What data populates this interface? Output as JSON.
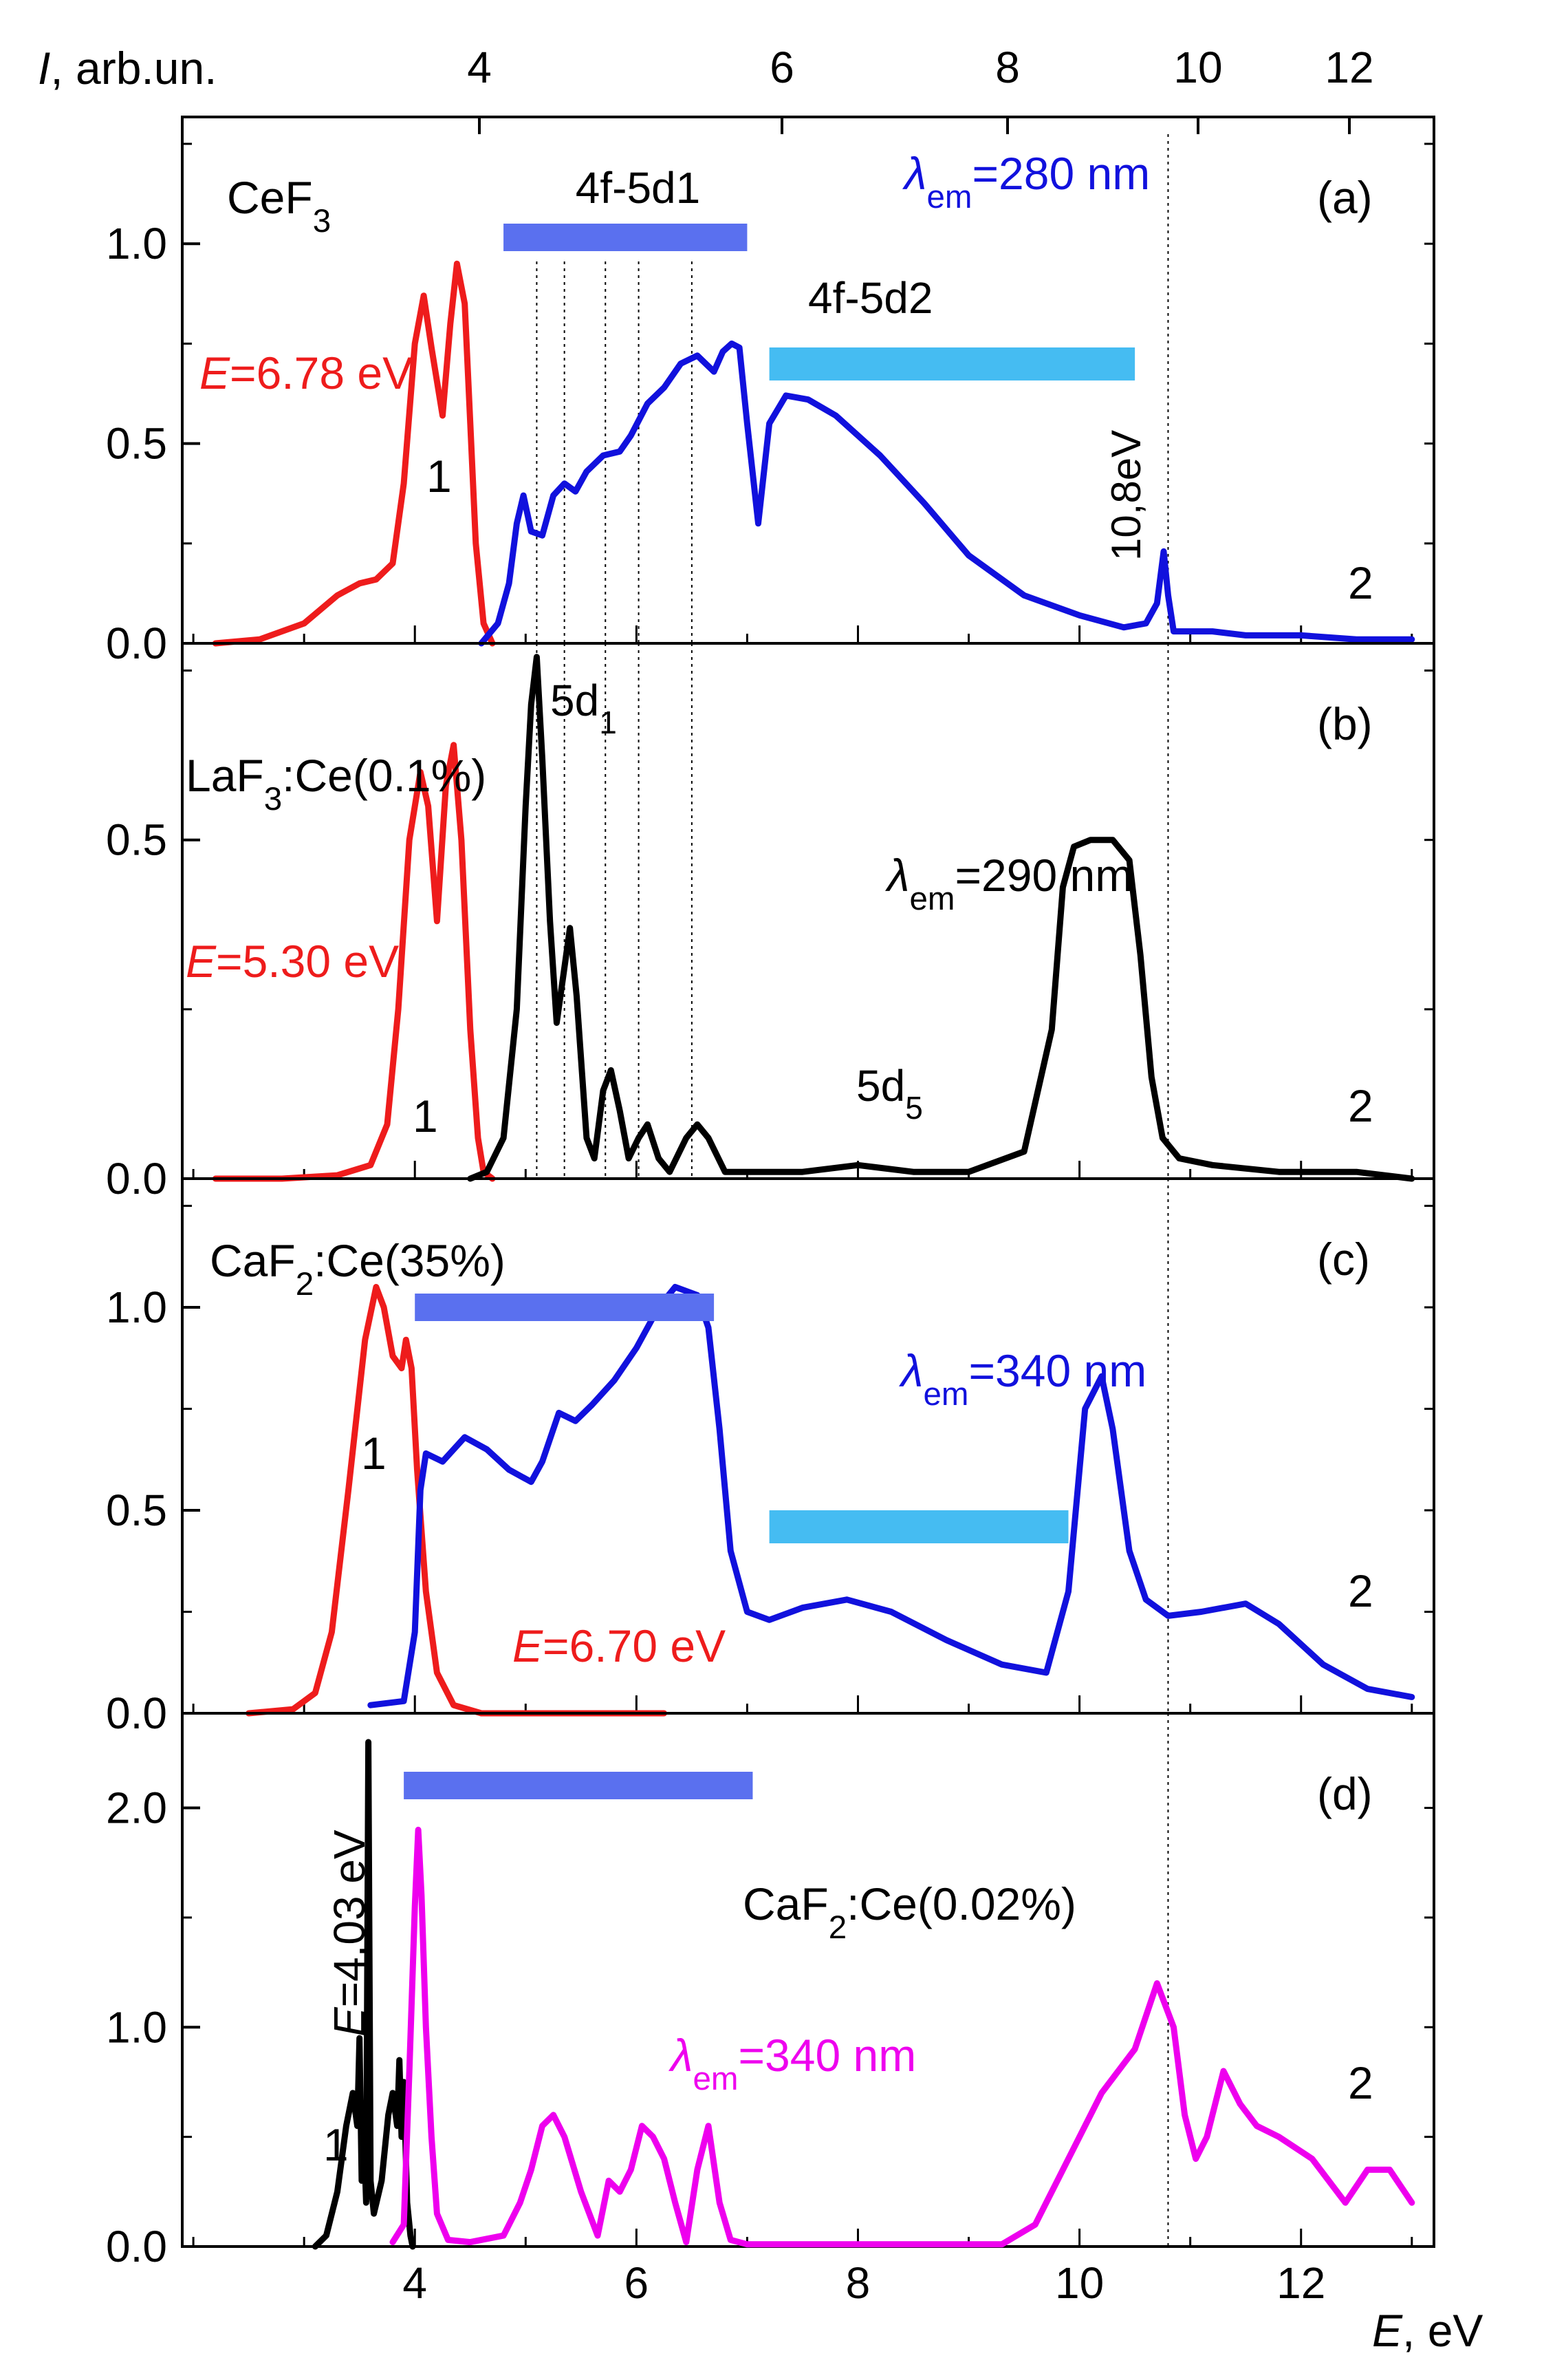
{
  "top_axis": {
    "ticks": [
      {
        "value": 4,
        "label": "4"
      },
      {
        "value": 6,
        "label": "6"
      },
      {
        "value": 8,
        "label": "8"
      },
      {
        "value": 10,
        "label": "10"
      },
      {
        "value": 12,
        "label": "12"
      }
    ]
  },
  "colors": {
    "red": "#ee1c1c",
    "blue": "#1111dd",
    "black": "#000000",
    "magenta": "#ee00ee",
    "band_dark": "#5a70ef",
    "band_light": "#45bcf2"
  },
  "ylabel_prefix": "I",
  "ylabel_suffix": ", arb.un.",
  "xlabel_prefix": "E",
  "xlabel_suffix": ", eV",
  "chart_data": [
    {
      "type": "line",
      "panel_label": "(a)",
      "sample_label": {
        "main": "CeF",
        "sub": "3",
        "tail": ""
      },
      "ylim": [
        0,
        1.3
      ],
      "yticks": [
        {
          "value": 0,
          "label": "0.0"
        },
        {
          "value": 0.5,
          "label": "0.5"
        },
        {
          "value": 1.0,
          "label": "1.0"
        }
      ],
      "excitation_label": {
        "prefix": "E",
        "text": "=6.78 eV"
      },
      "emission_label": {
        "lambda": "λ",
        "sub": "em",
        "text": "=280 nm"
      },
      "band_labels": [
        "4f-5d1",
        "4f-5d2"
      ],
      "annotation_vertical": "10,8eV",
      "curve_labels": [
        "1",
        "2"
      ],
      "series": [
        {
          "name": "1",
          "axis": "top_wavelength",
          "color": "red",
          "x": [
            2.2,
            2.6,
            3.0,
            3.3,
            3.5,
            3.65,
            3.8,
            3.9,
            4.0,
            4.08,
            4.15,
            4.25,
            4.32,
            4.38,
            4.45,
            4.5,
            4.55,
            4.62,
            4.7
          ],
          "y": [
            0,
            0.01,
            0.05,
            0.12,
            0.15,
            0.16,
            0.2,
            0.4,
            0.75,
            0.87,
            0.74,
            0.57,
            0.8,
            0.95,
            0.85,
            0.55,
            0.25,
            0.05,
            0
          ]
        },
        {
          "name": "2",
          "axis": "bottom_energy",
          "color": "blue",
          "x": [
            4.6,
            4.75,
            4.85,
            4.92,
            4.98,
            5.05,
            5.15,
            5.25,
            5.35,
            5.45,
            5.55,
            5.7,
            5.85,
            5.95,
            6.1,
            6.25,
            6.4,
            6.55,
            6.7,
            6.78,
            6.86,
            6.93,
            7.0,
            7.1,
            7.2,
            7.35,
            7.55,
            7.8,
            8.2,
            8.6,
            9.0,
            9.5,
            10.0,
            10.4,
            10.6,
            10.7,
            10.76,
            10.8,
            10.85,
            10.95,
            11.2,
            11.5,
            12.0,
            12.5,
            13.0
          ],
          "y": [
            0,
            0.05,
            0.15,
            0.3,
            0.37,
            0.28,
            0.27,
            0.37,
            0.4,
            0.38,
            0.43,
            0.47,
            0.48,
            0.52,
            0.6,
            0.64,
            0.7,
            0.72,
            0.68,
            0.73,
            0.75,
            0.74,
            0.55,
            0.3,
            0.55,
            0.62,
            0.61,
            0.57,
            0.47,
            0.35,
            0.22,
            0.12,
            0.07,
            0.04,
            0.05,
            0.1,
            0.23,
            0.12,
            0.03,
            0.03,
            0.03,
            0.02,
            0.02,
            0.01,
            0.01
          ]
        }
      ]
    },
    {
      "type": "line",
      "panel_label": "(b)",
      "sample_label": {
        "main": "LaF",
        "sub": "3",
        "tail": ":Ce(0.1%)"
      },
      "ylim": [
        0,
        0.78
      ],
      "yticks": [
        {
          "value": 0,
          "label": "0.0"
        },
        {
          "value": 0.5,
          "label": "0.5"
        }
      ],
      "excitation_label": {
        "prefix": "E",
        "text": "=5.30 eV"
      },
      "emission_label": {
        "lambda": "λ",
        "sub": "em",
        "text": "=290 nm"
      },
      "peak_labels": [
        {
          "main": "5d",
          "sub": "1"
        },
        {
          "main": "5d",
          "sub": "5"
        }
      ],
      "curve_labels": [
        "1",
        "2"
      ],
      "series": [
        {
          "name": "1",
          "axis": "top_wavelength",
          "color": "red",
          "x": [
            2.2,
            2.8,
            3.3,
            3.6,
            3.75,
            3.85,
            3.95,
            4.05,
            4.12,
            4.2,
            4.28,
            4.35,
            4.42,
            4.5,
            4.57,
            4.62,
            4.7
          ],
          "y": [
            0,
            0,
            0.005,
            0.02,
            0.08,
            0.25,
            0.5,
            0.6,
            0.55,
            0.38,
            0.58,
            0.64,
            0.5,
            0.22,
            0.06,
            0.01,
            0
          ]
        },
        {
          "name": "2",
          "axis": "bottom_energy",
          "color": "black",
          "x": [
            4.5,
            4.65,
            4.8,
            4.92,
            5.0,
            5.05,
            5.1,
            5.15,
            5.22,
            5.28,
            5.34,
            5.4,
            5.46,
            5.55,
            5.62,
            5.7,
            5.77,
            5.85,
            5.93,
            6.02,
            6.1,
            6.2,
            6.3,
            6.45,
            6.55,
            6.65,
            6.8,
            7.0,
            7.5,
            8.0,
            8.5,
            9.0,
            9.5,
            9.75,
            9.85,
            9.95,
            10.1,
            10.3,
            10.45,
            10.55,
            10.65,
            10.75,
            10.9,
            11.2,
            11.8,
            12.5,
            13.0
          ],
          "y": [
            0,
            0.01,
            0.06,
            0.25,
            0.55,
            0.7,
            0.77,
            0.62,
            0.38,
            0.23,
            0.3,
            0.37,
            0.27,
            0.06,
            0.03,
            0.13,
            0.16,
            0.1,
            0.03,
            0.06,
            0.08,
            0.03,
            0.01,
            0.06,
            0.08,
            0.06,
            0.01,
            0.01,
            0.01,
            0.02,
            0.01,
            0.01,
            0.04,
            0.22,
            0.43,
            0.49,
            0.5,
            0.5,
            0.47,
            0.33,
            0.15,
            0.06,
            0.03,
            0.02,
            0.01,
            0.01,
            0
          ]
        }
      ]
    },
    {
      "type": "line",
      "panel_label": "(c)",
      "sample_label": {
        "main": "CaF",
        "sub": "2",
        "tail": ":Ce(35%)"
      },
      "ylim": [
        0,
        1.3
      ],
      "yticks": [
        {
          "value": 0,
          "label": "0.0"
        },
        {
          "value": 0.5,
          "label": "0.5"
        },
        {
          "value": 1.0,
          "label": "1.0"
        }
      ],
      "excitation_label": {
        "prefix": "E",
        "text": "=6.70 eV"
      },
      "emission_label": {
        "lambda": "λ",
        "sub": "em",
        "text": "=340 nm"
      },
      "curve_labels": [
        "1",
        "2"
      ],
      "series": [
        {
          "name": "1",
          "axis": "top_wavelength",
          "color": "red",
          "x": [
            2.5,
            2.9,
            3.1,
            3.25,
            3.4,
            3.55,
            3.65,
            3.72,
            3.8,
            3.88,
            3.92,
            3.97,
            4.02,
            4.1,
            4.2,
            4.35,
            4.6,
            5.0,
            5.5,
            6.0,
            6.25
          ],
          "y": [
            0,
            0.01,
            0.05,
            0.2,
            0.55,
            0.92,
            1.05,
            1.0,
            0.88,
            0.85,
            0.92,
            0.85,
            0.6,
            0.3,
            0.1,
            0.02,
            0,
            0,
            0,
            0,
            0
          ]
        },
        {
          "name": "2",
          "axis": "bottom_energy",
          "color": "blue",
          "x": [
            3.6,
            3.9,
            4.0,
            4.05,
            4.1,
            4.25,
            4.45,
            4.65,
            4.85,
            5.05,
            5.15,
            5.3,
            5.45,
            5.6,
            5.8,
            6.0,
            6.2,
            6.35,
            6.55,
            6.65,
            6.75,
            6.85,
            7.0,
            7.2,
            7.5,
            7.9,
            8.3,
            8.8,
            9.3,
            9.7,
            9.9,
            10.05,
            10.2,
            10.3,
            10.45,
            10.6,
            10.8,
            11.1,
            11.5,
            11.8,
            12.2,
            12.6,
            13.0
          ],
          "y": [
            0.02,
            0.03,
            0.2,
            0.55,
            0.64,
            0.62,
            0.68,
            0.65,
            0.6,
            0.57,
            0.62,
            0.74,
            0.72,
            0.76,
            0.82,
            0.9,
            1.0,
            1.05,
            1.03,
            0.95,
            0.7,
            0.4,
            0.25,
            0.23,
            0.26,
            0.28,
            0.25,
            0.18,
            0.12,
            0.1,
            0.3,
            0.75,
            0.83,
            0.7,
            0.4,
            0.28,
            0.24,
            0.25,
            0.27,
            0.22,
            0.12,
            0.06,
            0.04
          ]
        }
      ]
    },
    {
      "type": "line",
      "panel_label": "(d)",
      "sample_label": {
        "main": "CaF",
        "sub": "2",
        "tail": ":Ce(0.02%)"
      },
      "ylim": [
        0,
        2.4
      ],
      "yticks": [
        {
          "value": 0,
          "label": "0.0"
        },
        {
          "value": 1.0,
          "label": "1.0"
        },
        {
          "value": 2.0,
          "label": "2.0"
        }
      ],
      "excitation_label": {
        "prefix": "E",
        "text": "=4.03 eV"
      },
      "emission_label": {
        "lambda": "λ",
        "sub": "em",
        "text": "=340 nm"
      },
      "curve_labels": [
        "1",
        "2"
      ],
      "series": [
        {
          "name": "1",
          "axis": "top_wavelength",
          "color": "black",
          "x": [
            3.1,
            3.2,
            3.3,
            3.38,
            3.44,
            3.48,
            3.5,
            3.52,
            3.54,
            3.56,
            3.58,
            3.6,
            3.63,
            3.7,
            3.76,
            3.8,
            3.84,
            3.86,
            3.88,
            3.9,
            3.93,
            3.96,
            3.98
          ],
          "y": [
            0,
            0.05,
            0.25,
            0.55,
            0.7,
            0.55,
            0.95,
            0.3,
            0.5,
            0.2,
            2.3,
            0.3,
            0.15,
            0.3,
            0.6,
            0.7,
            0.55,
            0.85,
            0.5,
            0.75,
            0.2,
            0.05,
            0
          ]
        },
        {
          "name": "2",
          "axis": "bottom_energy",
          "color": "magenta",
          "x": [
            3.8,
            3.9,
            3.95,
            4.0,
            4.03,
            4.06,
            4.1,
            4.15,
            4.2,
            4.3,
            4.5,
            4.8,
            4.95,
            5.05,
            5.15,
            5.25,
            5.35,
            5.5,
            5.65,
            5.75,
            5.85,
            5.95,
            6.05,
            6.15,
            6.25,
            6.35,
            6.45,
            6.55,
            6.65,
            6.75,
            6.85,
            7.0,
            7.5,
            8.0,
            8.5,
            9.0,
            9.3,
            9.6,
            9.9,
            10.2,
            10.5,
            10.7,
            10.85,
            10.95,
            11.05,
            11.15,
            11.3,
            11.45,
            11.6,
            11.8,
            12.1,
            12.4,
            12.6,
            12.8,
            13.0
          ],
          "y": [
            0.02,
            0.1,
            0.8,
            1.55,
            1.9,
            1.6,
            1.0,
            0.5,
            0.15,
            0.03,
            0.02,
            0.05,
            0.2,
            0.35,
            0.55,
            0.6,
            0.5,
            0.25,
            0.05,
            0.3,
            0.25,
            0.35,
            0.55,
            0.5,
            0.4,
            0.2,
            0.02,
            0.35,
            0.55,
            0.2,
            0.03,
            0.01,
            0.01,
            0.01,
            0.01,
            0.01,
            0.01,
            0.1,
            0.4,
            0.7,
            0.9,
            1.2,
            1.0,
            0.6,
            0.4,
            0.5,
            0.8,
            0.65,
            0.55,
            0.5,
            0.4,
            0.2,
            0.35,
            0.35,
            0.2
          ]
        }
      ]
    }
  ]
}
